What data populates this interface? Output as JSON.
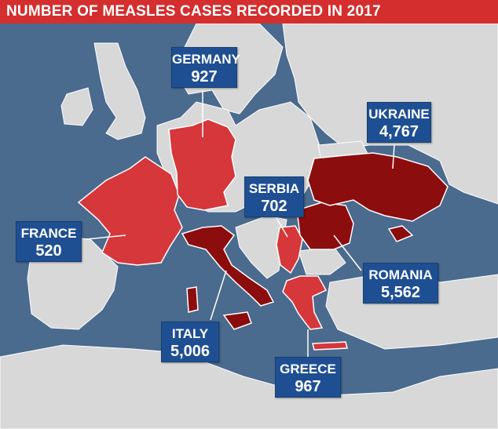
{
  "title": "NUMBER OF MEASLES CASES RECORDED IN 2017",
  "colors": {
    "sea": "#4a6a8e",
    "land": "#d8d8d8",
    "highlight_low": "#d6373a",
    "highlight_high": "#8c0d0d",
    "callout": "#1f4f93",
    "title_bar": "#d42e2e"
  },
  "countries": [
    {
      "id": "germany",
      "name": "GERMANY",
      "cases": "927"
    },
    {
      "id": "ukraine",
      "name": "UKRAINE",
      "cases": "4,767"
    },
    {
      "id": "serbia",
      "name": "SERBIA",
      "cases": "702"
    },
    {
      "id": "france",
      "name": "FRANCE",
      "cases": "520"
    },
    {
      "id": "romania",
      "name": "ROMANIA",
      "cases": "5,562"
    },
    {
      "id": "italy",
      "name": "ITALY",
      "cases": "5,006"
    },
    {
      "id": "greece",
      "name": "GREECE",
      "cases": "967"
    }
  ]
}
